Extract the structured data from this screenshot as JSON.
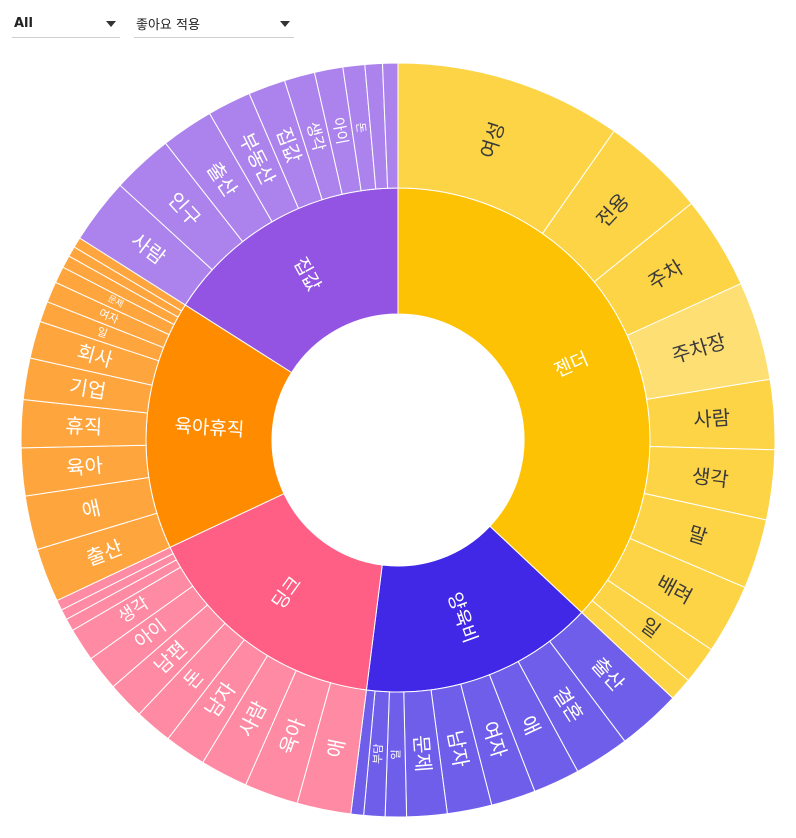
{
  "filters": {
    "category": {
      "value": "All"
    },
    "sort": {
      "value": "좋아요 적용"
    }
  },
  "chart_data": {
    "type": "sunburst",
    "children": [
      {
        "name": "젠더",
        "value": 37,
        "color": "#fcc203",
        "leafColor": "#fdd445",
        "children": [
          {
            "name": "여성",
            "value": 7.8
          },
          {
            "name": "전용",
            "value": 3.6
          },
          {
            "name": "주차",
            "value": 3.2
          },
          {
            "name": "주차장",
            "value": 3.4,
            "highlight": true
          },
          {
            "name": "사람",
            "value": 2.4
          },
          {
            "name": "생각",
            "value": 2.4
          },
          {
            "name": "말",
            "value": 2.4
          },
          {
            "name": "배려",
            "value": 2.4
          },
          {
            "name": "일",
            "value": 1.3
          },
          {
            "name": "",
            "value": 0.8
          }
        ]
      },
      {
        "name": "양육비",
        "value": 15,
        "color": "#4128e6",
        "leafColor": "#6f5ee9",
        "children": [
          {
            "name": "출산",
            "value": 3.0
          },
          {
            "name": "결혼",
            "value": 2.6
          },
          {
            "name": "애",
            "value": 2.2
          },
          {
            "name": "여자",
            "value": 2.1
          },
          {
            "name": "남자",
            "value": 2.1
          },
          {
            "name": "문제",
            "value": 1.9
          },
          {
            "name": "일",
            "value": 1.0
          },
          {
            "name": "부담",
            "value": 1.0
          },
          {
            "name": "",
            "value": 0.6
          }
        ]
      },
      {
        "name": "딩크",
        "value": 16,
        "color": "#ff5f84",
        "leafColor": "#ff8aa3",
        "children": [
          {
            "name": "애",
            "value": 2.6
          },
          {
            "name": "육아",
            "value": 2.6
          },
          {
            "name": "사람",
            "value": 2.3
          },
          {
            "name": "남자",
            "value": 2.0
          },
          {
            "name": "돈",
            "value": 1.8
          },
          {
            "name": "남편",
            "value": 1.8
          },
          {
            "name": "아이",
            "value": 1.7
          },
          {
            "name": "생각",
            "value": 1.6
          },
          {
            "name": "",
            "value": 0.6
          },
          {
            "name": "",
            "value": 0.5
          },
          {
            "name": "",
            "value": 0.5
          }
        ]
      },
      {
        "name": "육아휴직",
        "value": 16,
        "color": "#ff8c00",
        "leafColor": "#ffa53e",
        "children": [
          {
            "name": "출산",
            "value": 2.6
          },
          {
            "name": "애",
            "value": 2.6
          },
          {
            "name": "육아",
            "value": 2.3
          },
          {
            "name": "휴직",
            "value": 2.3
          },
          {
            "name": "기업",
            "value": 2.0
          },
          {
            "name": "회사",
            "value": 1.8
          },
          {
            "name": "일",
            "value": 1.0
          },
          {
            "name": "여자",
            "value": 1.0
          },
          {
            "name": "문제",
            "value": 0.8
          },
          {
            "name": "",
            "value": 0.6
          },
          {
            "name": "",
            "value": 0.5
          },
          {
            "name": "",
            "value": 0.5
          }
        ]
      },
      {
        "name": "집값",
        "value": 16,
        "color": "#9354e3",
        "leafColor": "#ac83ec",
        "children": [
          {
            "name": "사람",
            "value": 3.0
          },
          {
            "name": "인구",
            "value": 2.8
          },
          {
            "name": "출산",
            "value": 2.4
          },
          {
            "name": "부동산",
            "value": 2.0
          },
          {
            "name": "집값",
            "value": 1.7
          },
          {
            "name": "생각",
            "value": 1.4
          },
          {
            "name": "아이",
            "value": 1.3
          },
          {
            "name": "돈",
            "value": 1.0
          },
          {
            "name": "",
            "value": 0.8
          },
          {
            "name": "",
            "value": 0.7
          }
        ]
      }
    ]
  }
}
